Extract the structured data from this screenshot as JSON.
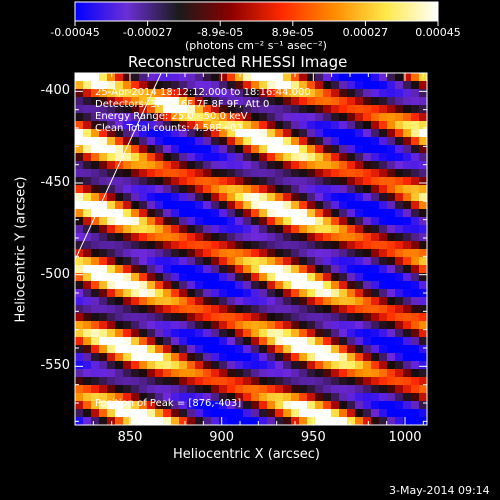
{
  "colorbar": {
    "ticks": [
      "-0.00045",
      "-0.00027",
      "-8.9e-05",
      "8.9e-05",
      "0.00027",
      "0.00045"
    ],
    "unit_label": "(photons cm⁻² s⁻¹ asec⁻²)",
    "stops": [
      "#0000ff",
      "#6b2fd6",
      "#1a1a1a",
      "#8b0000",
      "#ff2a00",
      "#ff8c00",
      "#ffe94a",
      "#ffffff"
    ]
  },
  "plot": {
    "title": "Reconstructed RHESSI Image",
    "info_lines": [
      "25-Apr-2014 18:12:12.000 to 18:16:44.000",
      "Detectors: 3F 5F 6F 7F 8F 9F, Att 0",
      "Energy Range: 25.0 - 50.0 keV",
      "Clean    Total counts: 4.58E+03"
    ],
    "peak_label": "Position of Peak = [876,-403]"
  },
  "footer": {
    "timestamp": "3-May-2014 09:14"
  },
  "chart_data": {
    "type": "heatmap",
    "title": "Reconstructed RHESSI Image",
    "xlabel": "Heliocentric X (arcsec)",
    "ylabel": "Heliocentric Y (arcsec)",
    "xlim": [
      820,
      1012
    ],
    "ylim": [
      -582,
      -390
    ],
    "xticks": [
      850,
      900,
      950,
      1000
    ],
    "xtick_labels": [
      "850",
      "900",
      "950",
      "1000"
    ],
    "yticks": [
      -400,
      -450,
      -500,
      -550
    ],
    "ytick_labels": [
      "-400",
      "-450",
      "-500",
      "-550"
    ],
    "colorbar_range": [
      -0.00045,
      0.00045
    ],
    "peak_position": [
      876,
      -403
    ],
    "limb_line": [
      [
        820,
        -492
      ],
      [
        867,
        -390
      ]
    ]
  }
}
